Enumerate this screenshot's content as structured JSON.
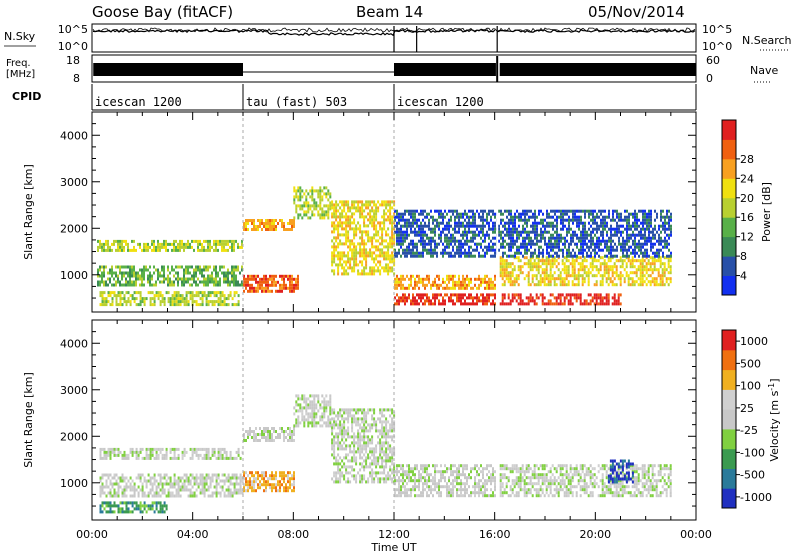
{
  "header": {
    "station": "Goose Bay (fitACF)",
    "beam": "Beam 14",
    "date": "05/Nov/2014"
  },
  "chart_data": [
    {
      "type": "line",
      "id": "nsky-nsearch",
      "left_label": "N.Sky",
      "right_label": "N.Search",
      "left_ticks": [
        "10^5",
        "10^0"
      ],
      "right_ticks": [
        "10^5",
        "10^0"
      ],
      "xlim": [
        0,
        24
      ],
      "gaps_ut": [
        [
          16.05,
          16.15
        ]
      ]
    },
    {
      "type": "line",
      "id": "freq-nave",
      "left_label": [
        "Freq.",
        "[MHz]"
      ],
      "right_label": "Nave",
      "left_ticks": [
        "18",
        "8"
      ],
      "right_ticks": [
        "60",
        "0"
      ],
      "ylim_left": [
        8,
        18
      ],
      "ylim_right": [
        0,
        60
      ],
      "xlim": [
        0,
        24
      ]
    },
    {
      "type": "table",
      "id": "cpid",
      "label": "CPID",
      "segments": [
        {
          "name": "icescan 1200",
          "start_ut": 0,
          "end_ut": 6
        },
        {
          "name": "tau (fast) 503",
          "start_ut": 6,
          "end_ut": 12
        },
        {
          "name": "icescan 1200",
          "start_ut": 12,
          "end_ut": 24
        }
      ]
    },
    {
      "type": "heatmap",
      "id": "power",
      "ylabel": "Slant Range [km]",
      "yticks": [
        1000,
        2000,
        3000,
        4000
      ],
      "ylim": [
        200,
        4500
      ],
      "xlim": [
        0,
        24
      ],
      "colorbar_label": "Power [dB]",
      "colorbar_ticks": [
        "4",
        "8",
        "12",
        "16",
        "20",
        "24",
        "28"
      ],
      "colors": [
        "#1230f0",
        "#2850a8",
        "#3a8a56",
        "#58b048",
        "#b8d030",
        "#f0e010",
        "#f8a020",
        "#f06010",
        "#e02020"
      ],
      "bands": [
        {
          "ut": [
            0.3,
            5.8
          ],
          "range": [
            350,
            650
          ],
          "level": 4
        },
        {
          "ut": [
            0.2,
            6.0
          ],
          "range": [
            750,
            1200
          ],
          "level": 3
        },
        {
          "ut": [
            0.2,
            6.0
          ],
          "range": [
            1550,
            1750
          ],
          "level": 4
        },
        {
          "ut": [
            6.0,
            8.2
          ],
          "range": [
            650,
            1000
          ],
          "level": 7
        },
        {
          "ut": [
            6.0,
            8.0
          ],
          "range": [
            1950,
            2200
          ],
          "level": 6
        },
        {
          "ut": [
            8.0,
            9.5
          ],
          "range": [
            2200,
            2900
          ],
          "level": 4
        },
        {
          "ut": [
            9.5,
            12.0
          ],
          "range": [
            1000,
            2600
          ],
          "level": 5
        },
        {
          "ut": [
            12.0,
            16.0
          ],
          "range": [
            400,
            600
          ],
          "level": 8
        },
        {
          "ut": [
            12.0,
            16.0
          ],
          "range": [
            700,
            1000
          ],
          "level": 6
        },
        {
          "ut": [
            16.2,
            21.0
          ],
          "range": [
            400,
            600
          ],
          "level": 8
        },
        {
          "ut": [
            16.2,
            23.0
          ],
          "range": [
            800,
            1400
          ],
          "level": 5
        },
        {
          "ut": [
            12.0,
            23.0
          ],
          "range": [
            1400,
            2400
          ],
          "level": 1
        }
      ]
    },
    {
      "type": "heatmap",
      "id": "velocity",
      "ylabel": "Slant Range [km]",
      "yticks": [
        1000,
        2000,
        3000,
        4000
      ],
      "ylim": [
        200,
        4500
      ],
      "xlim": [
        0,
        24
      ],
      "xlabel": "Time UT",
      "xticks": [
        "00:00",
        "04:00",
        "08:00",
        "12:00",
        "16:00",
        "20:00",
        "00:00"
      ],
      "colorbar_label": "Velocity [m s^-1]",
      "colorbar_ticks": [
        "1000",
        "500",
        "100",
        "25",
        "-25",
        "-100",
        "-500",
        "-1000"
      ],
      "colors": [
        "#2030c0",
        "#2a7a9a",
        "#3a9a50",
        "#80d040",
        "#c8c8c8",
        "#d0d0d0",
        "#f0b020",
        "#f07010",
        "#e02020"
      ],
      "bands": [
        {
          "ut": [
            0.3,
            3.0
          ],
          "range": [
            400,
            600
          ],
          "level": 2
        },
        {
          "ut": [
            0.3,
            6.0
          ],
          "range": [
            700,
            1200
          ],
          "level": 4
        },
        {
          "ut": [
            0.3,
            6.0
          ],
          "range": [
            1550,
            1750
          ],
          "level": 4
        },
        {
          "ut": [
            6.0,
            8.0
          ],
          "range": [
            800,
            1250
          ],
          "level": 6
        },
        {
          "ut": [
            6.0,
            8.0
          ],
          "range": [
            1900,
            2200
          ],
          "level": 4
        },
        {
          "ut": [
            8.0,
            9.5
          ],
          "range": [
            2200,
            2900
          ],
          "level": 4
        },
        {
          "ut": [
            9.5,
            12.0
          ],
          "range": [
            1000,
            2600
          ],
          "level": 4
        },
        {
          "ut": [
            12.0,
            16.0
          ],
          "range": [
            700,
            1400
          ],
          "level": 4
        },
        {
          "ut": [
            16.2,
            23.0
          ],
          "range": [
            700,
            1400
          ],
          "level": 4
        },
        {
          "ut": [
            20.5,
            21.5
          ],
          "range": [
            1000,
            1500
          ],
          "level": 0
        }
      ]
    }
  ]
}
